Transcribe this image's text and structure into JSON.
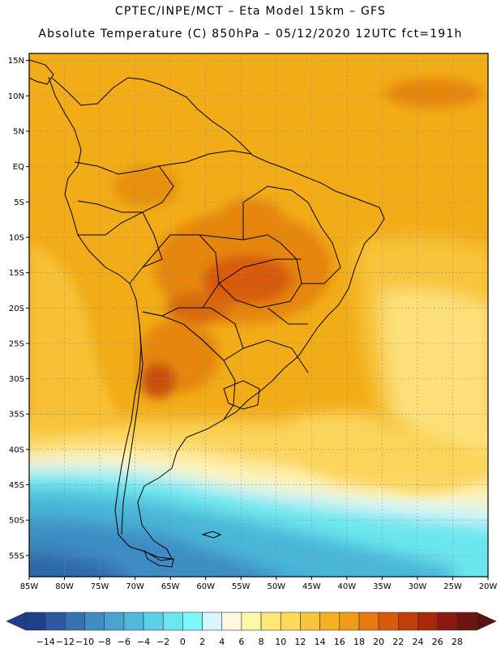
{
  "header": {
    "line1": "CPTEC/INPE/MCT –  Eta Model 15km – GFS",
    "line2": "Absolute Temperature (C) 850hPa – 05/12/2020 12UTC fct=191h"
  },
  "map": {
    "lon_range": [
      -85,
      -20
    ],
    "lat_range": [
      -58,
      16
    ],
    "lat_ticks": [
      "15N",
      "10N",
      "5N",
      "EQ",
      "5S",
      "10S",
      "15S",
      "20S",
      "25S",
      "30S",
      "35S",
      "40S",
      "45S",
      "50S",
      "55S"
    ],
    "lon_ticks": [
      "85W",
      "80W",
      "75W",
      "70W",
      "65W",
      "60W",
      "55W",
      "50W",
      "45W",
      "40W",
      "35W",
      "30W",
      "25W",
      "20W"
    ],
    "grid": "dotted"
  },
  "legend": {
    "labels": [
      "-14",
      "-12",
      "-10",
      "-8",
      "-6",
      "-4",
      "-2",
      "0",
      "2",
      "4",
      "6",
      "8",
      "10",
      "12",
      "14",
      "16",
      "18",
      "20",
      "22",
      "24",
      "26",
      "28"
    ],
    "colors": [
      "#1f3f8c",
      "#2b58a0",
      "#3572b3",
      "#3f8cc2",
      "#48a3cf",
      "#52b9dc",
      "#5cd0e6",
      "#6ae6ee",
      "#7cf8f8",
      "#d6f6fb",
      "#fff8e0",
      "#fff6a8",
      "#ffe878",
      "#ffd95a",
      "#f8c43a",
      "#f5b020",
      "#f09c14",
      "#e6780e",
      "#d85a0a",
      "#c23e08",
      "#a82808",
      "#8a1a10",
      "#6e1410"
    ]
  }
}
